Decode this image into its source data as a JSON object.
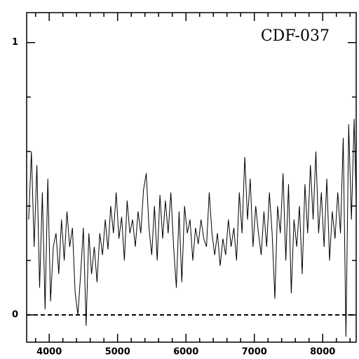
{
  "chart_data": {
    "type": "line",
    "label": "CDF-037",
    "x": [
      3700,
      3740,
      3780,
      3820,
      3860,
      3900,
      3940,
      3980,
      4020,
      4060,
      4100,
      4140,
      4180,
      4220,
      4260,
      4300,
      4340,
      4380,
      4420,
      4460,
      4500,
      4540,
      4580,
      4620,
      4660,
      4700,
      4740,
      4780,
      4820,
      4860,
      4900,
      4940,
      4980,
      5020,
      5060,
      5100,
      5140,
      5180,
      5220,
      5260,
      5300,
      5340,
      5380,
      5420,
      5460,
      5500,
      5540,
      5580,
      5620,
      5660,
      5700,
      5740,
      5780,
      5820,
      5860,
      5900,
      5940,
      5980,
      6020,
      6060,
      6100,
      6140,
      6180,
      6220,
      6260,
      6300,
      6340,
      6380,
      6420,
      6460,
      6500,
      6540,
      6580,
      6620,
      6660,
      6700,
      6740,
      6780,
      6820,
      6860,
      6900,
      6940,
      6980,
      7020,
      7060,
      7100,
      7140,
      7180,
      7220,
      7260,
      7300,
      7340,
      7380,
      7420,
      7460,
      7500,
      7540,
      7580,
      7620,
      7660,
      7700,
      7740,
      7780,
      7820,
      7860,
      7900,
      7940,
      7980,
      8020,
      8060,
      8100,
      8140,
      8180,
      8220,
      8260,
      8300,
      8340,
      8380,
      8420,
      8460,
      8500
    ],
    "series": [
      {
        "color": "#000000",
        "values": [
          0.35,
          0.6,
          0.25,
          0.55,
          0.1,
          0.45,
          0.02,
          0.5,
          0.05,
          0.25,
          0.3,
          0.15,
          0.35,
          0.2,
          0.38,
          0.25,
          0.32,
          0.08,
          0.0,
          0.15,
          0.32,
          -0.04,
          0.3,
          0.15,
          0.25,
          0.12,
          0.3,
          0.22,
          0.35,
          0.24,
          0.4,
          0.3,
          0.45,
          0.28,
          0.36,
          0.2,
          0.42,
          0.3,
          0.35,
          0.25,
          0.38,
          0.3,
          0.46,
          0.52,
          0.32,
          0.22,
          0.4,
          0.2,
          0.44,
          0.28,
          0.42,
          0.3,
          0.45,
          0.25,
          0.1,
          0.38,
          0.12,
          0.4,
          0.3,
          0.35,
          0.2,
          0.32,
          0.26,
          0.35,
          0.28,
          0.25,
          0.45,
          0.3,
          0.22,
          0.3,
          0.18,
          0.28,
          0.22,
          0.35,
          0.25,
          0.32,
          0.2,
          0.45,
          0.3,
          0.58,
          0.35,
          0.5,
          0.25,
          0.4,
          0.3,
          0.22,
          0.38,
          0.25,
          0.45,
          0.3,
          0.06,
          0.4,
          0.3,
          0.52,
          0.2,
          0.48,
          0.08,
          0.35,
          0.25,
          0.4,
          0.15,
          0.48,
          0.3,
          0.55,
          0.35,
          0.6,
          0.3,
          0.45,
          0.25,
          0.5,
          0.2,
          0.38,
          0.28,
          0.45,
          0.3,
          0.65,
          -0.08,
          0.7,
          0.35,
          0.72,
          0.3
        ]
      }
    ],
    "xlim": [
      3670,
      8490
    ],
    "ylim": [
      -0.1,
      1.11
    ],
    "xticks": [
      4000,
      5000,
      6000,
      7000,
      8000
    ],
    "yticks": [
      0,
      1
    ],
    "xminor": [
      3800,
      4200,
      4400,
      4600,
      4800,
      5200,
      5400,
      5600,
      5800,
      6200,
      6400,
      6600,
      6800,
      7200,
      7400,
      7600,
      7800,
      8200,
      8400
    ],
    "yminor": [
      0.2,
      0.4,
      0.6,
      0.8
    ],
    "hline": 0
  }
}
